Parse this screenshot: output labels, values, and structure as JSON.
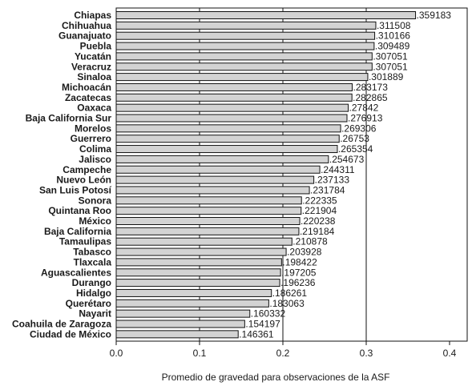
{
  "chart_data": {
    "type": "bar",
    "orientation": "horizontal",
    "title": "",
    "xlabel": "Promedio de gravedad para observaciones de la ASF",
    "ylabel": "",
    "xlim": [
      0,
      0.42
    ],
    "xticks": [
      0,
      0.1,
      0.2,
      0.3,
      0.4
    ],
    "xtick_labels": [
      "0.0",
      "0.1",
      "0.2",
      "0.3",
      "0.4"
    ],
    "gridlines_x": [
      0.1,
      0.2,
      0.3
    ],
    "bar_color": "#d3d3d3",
    "categories": [
      "Chiapas",
      "Chihuahua",
      "Guanajuato",
      "Puebla",
      "Yucatán",
      "Veracruz",
      "Sinaloa",
      "Michoacán",
      "Zacatecas",
      "Oaxaca",
      "Baja California Sur",
      "Morelos",
      "Guerrero",
      "Colima",
      "Jalisco",
      "Campeche",
      "Nuevo León",
      "San Luis Potosí",
      "Sonora",
      "Quintana Roo",
      "México",
      "Baja California",
      "Tamaulipas",
      "Tabasco",
      "Tlaxcala",
      "Aguascalientes",
      "Durango",
      "Hidalgo",
      "Querétaro",
      "Nayarit",
      "Coahuila de Zaragoza",
      "Ciudad de México"
    ],
    "values": [
      0.359183,
      0.311508,
      0.310166,
      0.309489,
      0.307051,
      0.307051,
      0.301889,
      0.283173,
      0.282865,
      0.27842,
      0.276913,
      0.269306,
      0.26753,
      0.265354,
      0.254673,
      0.244311,
      0.237133,
      0.231784,
      0.222335,
      0.221904,
      0.220238,
      0.219184,
      0.210878,
      0.203928,
      0.198422,
      0.197205,
      0.196236,
      0.186261,
      0.183063,
      0.160332,
      0.154197,
      0.146361
    ],
    "value_labels": [
      ".359183",
      ".311508",
      ".310166",
      ".309489",
      ".307051",
      ".307051",
      ".301889",
      ".283173",
      ".282865",
      ".27842",
      ".276913",
      ".269306",
      ".26753",
      ".265354",
      ".254673",
      ".244311",
      ".237133",
      ".231784",
      ".222335",
      ".221904",
      ".220238",
      ".219184",
      ".210878",
      ".203928",
      ".198422",
      ".197205",
      ".196236",
      ".186261",
      ".183063",
      ".160332",
      ".154197",
      ".146361"
    ]
  }
}
